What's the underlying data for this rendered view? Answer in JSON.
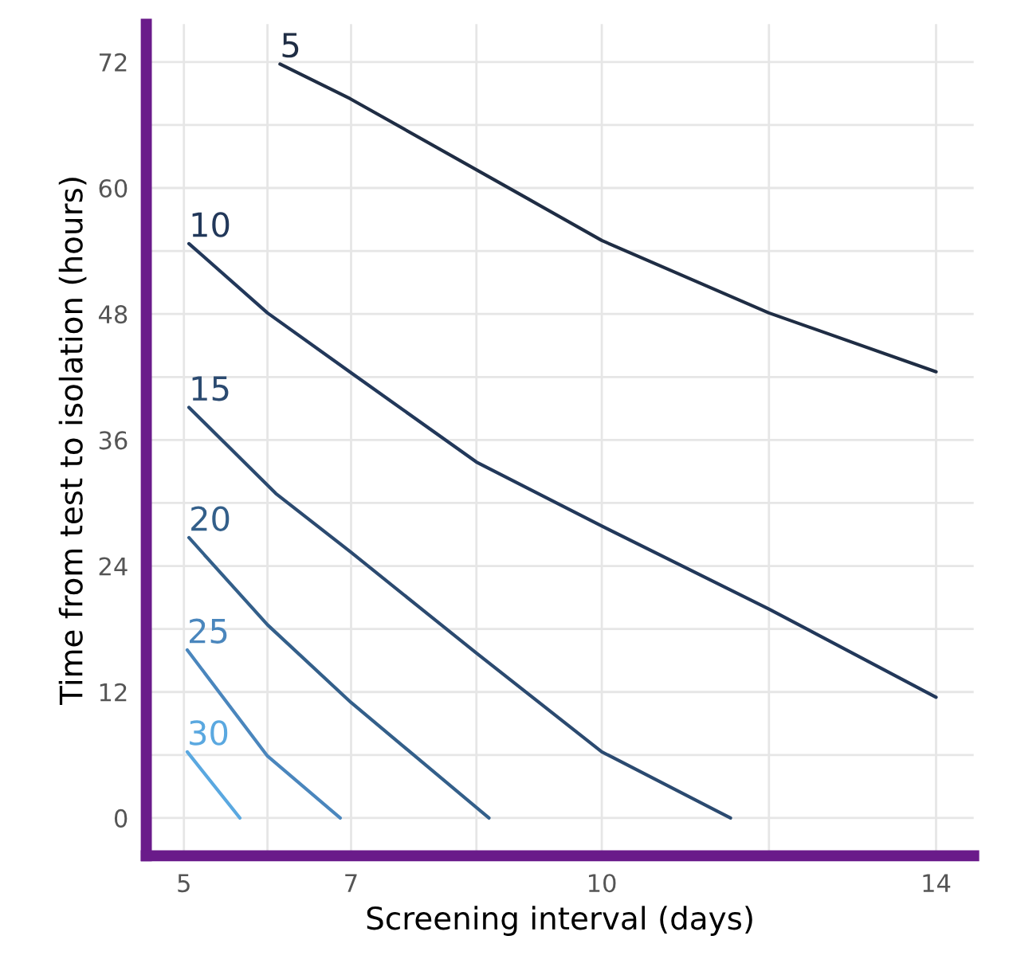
{
  "chart_data": {
    "type": "line",
    "xlabel": "Screening interval (days)",
    "ylabel": "Time from test to isolation (hours)",
    "xlim": [
      4.55,
      14.45
    ],
    "ylim": [
      -3.6,
      75.6
    ],
    "xticks": [
      5,
      {
        "value": 6,
        "label": null
      },
      7,
      {
        "value": 8.5,
        "label": null
      },
      10,
      {
        "value": 12,
        "label": null
      },
      14
    ],
    "yticks": [
      0,
      {
        "value": 6,
        "label": null
      },
      12,
      {
        "value": 18,
        "label": null
      },
      24,
      {
        "value": 30,
        "label": null
      },
      36,
      {
        "value": 42,
        "label": null
      },
      48,
      {
        "value": 54,
        "label": null
      },
      60,
      {
        "value": 66,
        "label": null
      },
      72
    ],
    "grid": true,
    "series": [
      {
        "name": "5",
        "color": "#1f2d44",
        "x": [
          6.15,
          6.99,
          9.11,
          10,
          12,
          14
        ],
        "values": [
          71.8,
          68.5,
          59,
          55,
          48.1,
          42.5
        ]
      },
      {
        "name": "10",
        "color": "#22385a",
        "x": [
          5.06,
          6,
          7,
          8.5,
          10,
          12,
          14
        ],
        "values": [
          54.7,
          48.1,
          42.4,
          33.9,
          27.8,
          19.9,
          11.5
        ]
      },
      {
        "name": "15",
        "color": "#2b4a70",
        "x": [
          5.06,
          6.1,
          7,
          8.5,
          10,
          11.54
        ],
        "values": [
          39.1,
          30.9,
          25.3,
          15.7,
          6.3,
          0
        ]
      },
      {
        "name": "20",
        "color": "#335f8a",
        "x": [
          5.06,
          6,
          7,
          8.65
        ],
        "values": [
          26.7,
          18.4,
          11,
          0
        ]
      },
      {
        "name": "25",
        "color": "#4a86bd",
        "x": [
          5.04,
          6,
          6.87
        ],
        "values": [
          16,
          5.9,
          0
        ]
      },
      {
        "name": "30",
        "color": "#5aa8e0",
        "x": [
          5.04,
          5.67
        ],
        "values": [
          6.3,
          0
        ]
      }
    ]
  }
}
